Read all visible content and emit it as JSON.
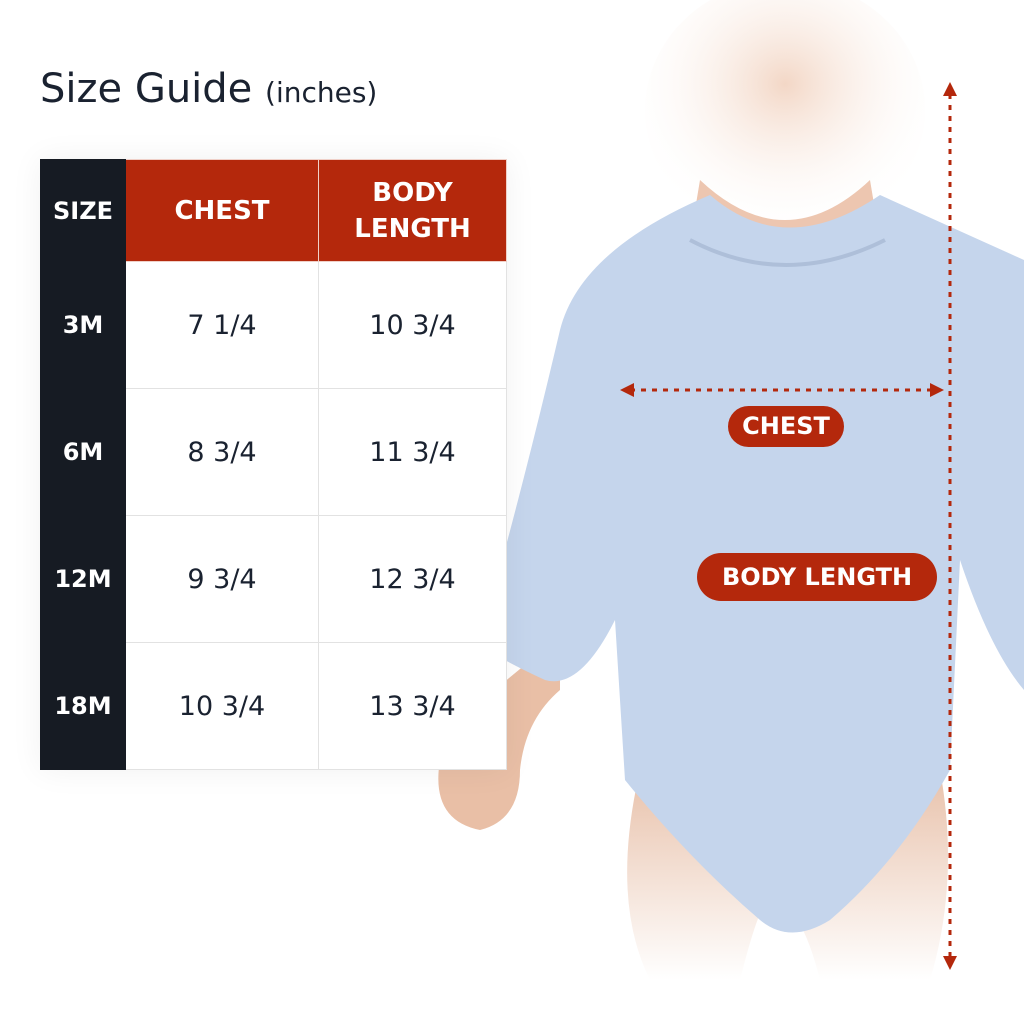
{
  "title": {
    "main": "Size Guide",
    "unit": "(inches)"
  },
  "table": {
    "headers": [
      "SIZE",
      "CHEST",
      "BODY LENGTH"
    ],
    "rows": [
      {
        "size": "3M",
        "chest": "7 1/4",
        "body_length": "10 3/4"
      },
      {
        "size": "6M",
        "chest": "8 3/4",
        "body_length": "11 3/4"
      },
      {
        "size": "12M",
        "chest": "9 3/4",
        "body_length": "12 3/4"
      },
      {
        "size": "18M",
        "chest": "10 3/4",
        "body_length": "13 3/4"
      }
    ]
  },
  "labels": {
    "chest": "CHEST",
    "body_length": "BODY LENGTH"
  },
  "colors": {
    "accent": "#b4280c",
    "dark": "#161b23",
    "garment": "#c5d5ec"
  }
}
